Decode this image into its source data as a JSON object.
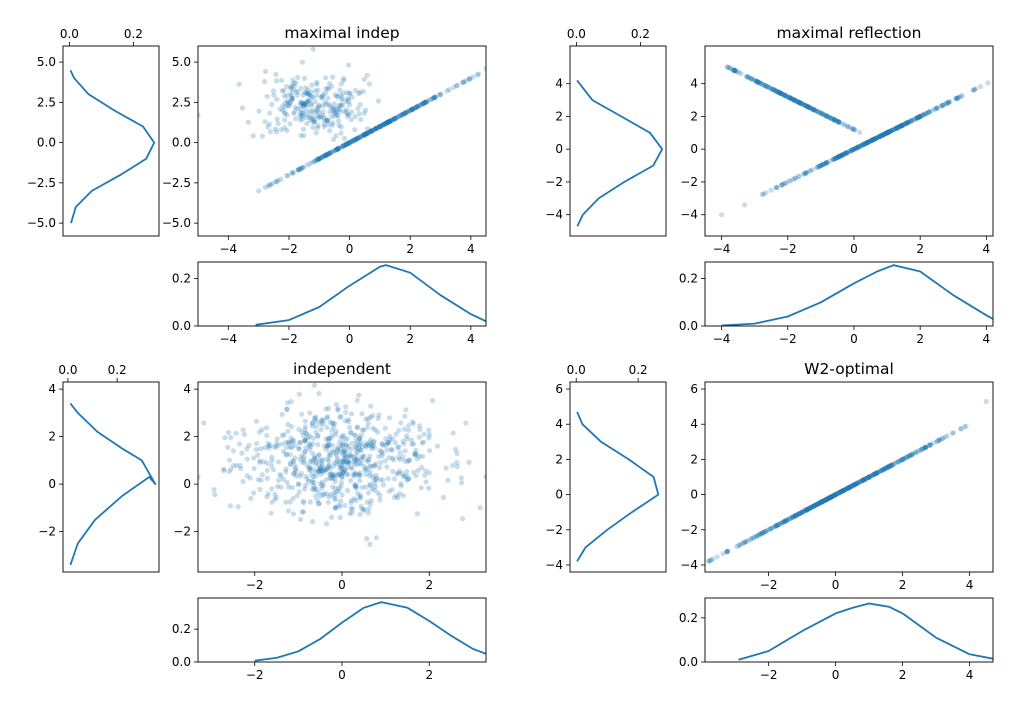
{
  "colors": {
    "series": "#1f77b4",
    "axis": "#000000",
    "background": "#ffffff"
  },
  "chart_data": [
    {
      "panel": "maximal-indep",
      "scatter": {
        "type": "scatter",
        "title": "maximal indep",
        "xlim": [
          -5.0,
          4.5
        ],
        "ylim": [
          -5.8,
          6.0
        ],
        "xticks": [
          -4,
          -2,
          0,
          2,
          4
        ],
        "yticks": [
          -5.0,
          -2.5,
          0.0,
          2.5,
          5.0
        ],
        "ytick_labels": [
          "−5.0",
          "−2.5",
          "0.0",
          "2.5",
          "5.0"
        ],
        "clusters": [
          {
            "kind": "line",
            "slope": 1.0,
            "intercept": 0.0,
            "x_range": [
              -3.1,
              4.5
            ],
            "n": 300
          },
          {
            "kind": "blob",
            "x_mean": -1.2,
            "x_sd": 0.85,
            "y_mean": 2.3,
            "y_sd": 0.9,
            "n": 260
          }
        ],
        "outliers": [
          [
            -1.2,
            5.8
          ],
          [
            -5.0,
            1.7
          ],
          [
            4.5,
            4.6
          ]
        ]
      },
      "x_marginal": {
        "type": "line",
        "xlim": [
          -5.0,
          4.5
        ],
        "ylim": [
          0,
          0.27
        ],
        "xticks": [
          -4,
          -2,
          0,
          2,
          4
        ],
        "yticks": [
          0.0,
          0.2
        ],
        "ytick_labels": [
          "0.0",
          "0.2"
        ],
        "x_range": [
          -3.1,
          4.5
        ],
        "curve": [
          [
            -3.1,
            0.005
          ],
          [
            -2.0,
            0.025
          ],
          [
            -1.0,
            0.08
          ],
          [
            0.0,
            0.17
          ],
          [
            1.0,
            0.25
          ],
          [
            1.2,
            0.257
          ],
          [
            2.0,
            0.225
          ],
          [
            3.0,
            0.13
          ],
          [
            4.0,
            0.05
          ],
          [
            4.5,
            0.02
          ]
        ]
      },
      "y_marginal": {
        "type": "line",
        "xlim": [
          -0.02,
          0.28
        ],
        "ylim": [
          -5.8,
          6.0
        ],
        "xticks": [
          0.0,
          0.2
        ],
        "xtick_labels": [
          "0.0",
          "0.2"
        ],
        "yticks": [
          -5.0,
          -2.5,
          0.0,
          2.5,
          5.0
        ],
        "ytick_labels": [
          "−5.0",
          "−2.5",
          "0.0",
          "2.5",
          "5.0"
        ],
        "curve": [
          [
            0.005,
            -5.0
          ],
          [
            0.02,
            -4.0
          ],
          [
            0.07,
            -3.0
          ],
          [
            0.16,
            -2.0
          ],
          [
            0.24,
            -1.0
          ],
          [
            0.265,
            0.0
          ],
          [
            0.23,
            1.0
          ],
          [
            0.14,
            2.0
          ],
          [
            0.06,
            3.0
          ],
          [
            0.015,
            4.0
          ],
          [
            0.003,
            4.5
          ]
        ]
      }
    },
    {
      "panel": "maximal-reflection",
      "scatter": {
        "type": "scatter",
        "title": "maximal reflection",
        "xlim": [
          -4.5,
          4.2
        ],
        "ylim": [
          -5.3,
          6.3
        ],
        "xticks": [
          -4,
          -2,
          0,
          2,
          4
        ],
        "yticks": [
          -4,
          -2,
          0,
          2,
          4
        ],
        "ytick_labels": [
          "−4",
          "−2",
          "0",
          "2",
          "4"
        ],
        "clusters": [
          {
            "kind": "line",
            "slope": 1.0,
            "intercept": 0.0,
            "x_range": [
              -2.8,
              4.1
            ],
            "n": 320
          },
          {
            "kind": "line",
            "slope": -1.0,
            "intercept": 1.2,
            "x_range": [
              -4.5,
              0.6
            ],
            "n": 200
          }
        ],
        "outliers": [
          [
            -4.0,
            -4.0
          ],
          [
            -3.3,
            -3.4
          ]
        ]
      },
      "x_marginal": {
        "type": "line",
        "xlim": [
          -4.5,
          4.2
        ],
        "ylim": [
          0,
          0.27
        ],
        "xticks": [
          -4,
          -2,
          0,
          2,
          4
        ],
        "yticks": [
          0.0,
          0.2
        ],
        "ytick_labels": [
          "0.0",
          "0.2"
        ],
        "curve": [
          [
            -4.0,
            0.002
          ],
          [
            -3.0,
            0.01
          ],
          [
            -2.0,
            0.04
          ],
          [
            -1.0,
            0.1
          ],
          [
            0.0,
            0.18
          ],
          [
            0.7,
            0.23
          ],
          [
            1.2,
            0.257
          ],
          [
            2.0,
            0.23
          ],
          [
            3.0,
            0.13
          ],
          [
            4.0,
            0.045
          ],
          [
            4.2,
            0.03
          ]
        ]
      },
      "y_marginal": {
        "type": "line",
        "xlim": [
          -0.02,
          0.28
        ],
        "ylim": [
          -5.3,
          6.3
        ],
        "xticks": [
          0.0,
          0.2
        ],
        "xtick_labels": [
          "0.0",
          "0.2"
        ],
        "yticks": [
          -4,
          -2,
          0,
          2,
          4
        ],
        "ytick_labels": [
          "−4",
          "−2",
          "0",
          "2",
          "4"
        ],
        "curve": [
          [
            0.003,
            -4.7
          ],
          [
            0.02,
            -4.0
          ],
          [
            0.07,
            -3.0
          ],
          [
            0.15,
            -2.0
          ],
          [
            0.24,
            -1.0
          ],
          [
            0.268,
            0.0
          ],
          [
            0.23,
            1.0
          ],
          [
            0.14,
            2.0
          ],
          [
            0.05,
            3.0
          ],
          [
            0.01,
            4.0
          ],
          [
            0.002,
            4.2
          ]
        ]
      }
    },
    {
      "panel": "independent",
      "scatter": {
        "type": "scatter",
        "title": "independent",
        "xlim": [
          -3.3,
          3.3
        ],
        "ylim": [
          -3.7,
          4.3
        ],
        "xticks": [
          -2,
          0,
          2
        ],
        "yticks": [
          -2,
          0,
          2,
          4
        ],
        "ytick_labels": [
          "−2",
          "0",
          "2",
          "4"
        ],
        "clusters": [
          {
            "kind": "blob",
            "x_mean": 0.0,
            "x_sd": 1.1,
            "y_mean": 1.0,
            "y_sd": 1.1,
            "n": 700
          }
        ],
        "outliers": [
          [
            -3.3,
            0.3
          ],
          [
            3.3,
            0.3
          ]
        ]
      },
      "x_marginal": {
        "type": "line",
        "xlim": [
          -3.3,
          3.3
        ],
        "ylim": [
          0,
          0.39
        ],
        "xticks": [
          -2,
          0,
          2
        ],
        "yticks": [
          0.0,
          0.2
        ],
        "ytick_labels": [
          "0.0",
          "0.2"
        ],
        "curve": [
          [
            -2.0,
            0.008
          ],
          [
            -1.5,
            0.025
          ],
          [
            -1.0,
            0.065
          ],
          [
            -0.5,
            0.14
          ],
          [
            0.0,
            0.24
          ],
          [
            0.5,
            0.33
          ],
          [
            0.9,
            0.365
          ],
          [
            1.5,
            0.33
          ],
          [
            2.0,
            0.25
          ],
          [
            2.5,
            0.16
          ],
          [
            3.0,
            0.08
          ],
          [
            3.3,
            0.05
          ]
        ]
      },
      "y_marginal": {
        "type": "line",
        "xlim": [
          -0.02,
          0.37
        ],
        "ylim": [
          -3.7,
          4.3
        ],
        "xticks": [
          0.0,
          0.2
        ],
        "xtick_labels": [
          "0.0",
          "0.2"
        ],
        "yticks": [
          -2,
          0,
          2,
          4
        ],
        "ytick_labels": [
          "−2",
          "0",
          "2",
          "4"
        ],
        "curve": [
          [
            0.01,
            -3.4
          ],
          [
            0.04,
            -2.5
          ],
          [
            0.11,
            -1.5
          ],
          [
            0.22,
            -0.5
          ],
          [
            0.33,
            0.3
          ],
          [
            0.355,
            0.0
          ],
          [
            0.3,
            1.0
          ],
          [
            0.22,
            1.5
          ],
          [
            0.12,
            2.2
          ],
          [
            0.04,
            3.0
          ],
          [
            0.01,
            3.4
          ]
        ]
      }
    },
    {
      "panel": "w2-optimal",
      "scatter": {
        "type": "scatter",
        "title": "W2-optimal",
        "xlim": [
          -3.9,
          4.7
        ],
        "ylim": [
          -4.4,
          6.4
        ],
        "xticks": [
          -2,
          0,
          2,
          4
        ],
        "yticks": [
          -4,
          -2,
          0,
          2,
          4,
          6
        ],
        "ytick_labels": [
          "−4",
          "−2",
          "0",
          "2",
          "4",
          "6"
        ],
        "clusters": [
          {
            "kind": "line",
            "slope": 1.0,
            "intercept": 0.0,
            "x_range": [
              -3.9,
              3.9
            ],
            "n": 420
          }
        ],
        "outliers": [
          [
            4.5,
            5.3
          ]
        ]
      },
      "x_marginal": {
        "type": "line",
        "xlim": [
          -3.9,
          4.7
        ],
        "ylim": [
          0,
          0.29
        ],
        "xticks": [
          -2,
          0,
          2,
          4
        ],
        "yticks": [
          0.0,
          0.2
        ],
        "ytick_labels": [
          "0.0",
          "0.2"
        ],
        "curve": [
          [
            -2.9,
            0.01
          ],
          [
            -2.0,
            0.05
          ],
          [
            -1.0,
            0.14
          ],
          [
            0.0,
            0.22
          ],
          [
            0.5,
            0.245
          ],
          [
            1.0,
            0.265
          ],
          [
            1.6,
            0.25
          ],
          [
            2.0,
            0.22
          ],
          [
            3.0,
            0.11
          ],
          [
            4.0,
            0.035
          ],
          [
            4.7,
            0.015
          ]
        ]
      },
      "y_marginal": {
        "type": "line",
        "xlim": [
          -0.02,
          0.29
        ],
        "ylim": [
          -4.4,
          6.4
        ],
        "xticks": [
          0.0,
          0.2
        ],
        "xtick_labels": [
          "0.0",
          "0.2"
        ],
        "yticks": [
          -4,
          -2,
          0,
          2,
          4,
          6
        ],
        "ytick_labels": [
          "−4",
          "−2",
          "0",
          "2",
          "4",
          "6"
        ],
        "curve": [
          [
            0.003,
            -3.8
          ],
          [
            0.03,
            -3.0
          ],
          [
            0.1,
            -2.0
          ],
          [
            0.18,
            -1.0
          ],
          [
            0.24,
            -0.3
          ],
          [
            0.265,
            0.0
          ],
          [
            0.25,
            1.0
          ],
          [
            0.17,
            2.0
          ],
          [
            0.08,
            3.0
          ],
          [
            0.02,
            4.0
          ],
          [
            0.003,
            4.7
          ]
        ]
      }
    }
  ]
}
